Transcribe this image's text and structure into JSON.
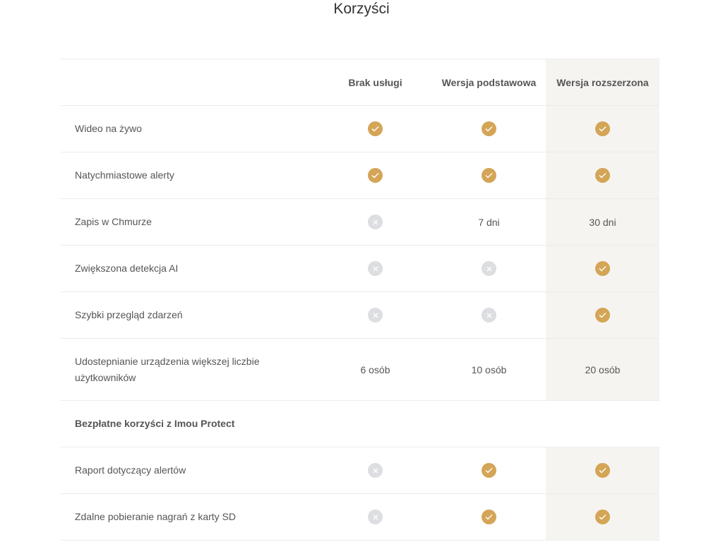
{
  "title": "Korzyści",
  "colors": {
    "check": "#d4a557",
    "cross": "#dddee1",
    "highlight": "#f5f4f0"
  },
  "columns": [
    "Brak usługi",
    "Wersja podstawowa",
    "Wersja rozszerzona"
  ],
  "rows": [
    {
      "label": "Wideo na żywo",
      "values": [
        "check",
        "check",
        "check"
      ]
    },
    {
      "label": "Natychmiastowe alerty",
      "values": [
        "check",
        "check",
        "check"
      ]
    },
    {
      "label": "Zapis w Chmurze",
      "values": [
        "cross",
        "7 dni",
        "30 dni"
      ]
    },
    {
      "label": "Zwiększona detekcja AI",
      "values": [
        "cross",
        "cross",
        "check"
      ]
    },
    {
      "label": "Szybki przegląd zdarzeń",
      "values": [
        "cross",
        "cross",
        "check"
      ]
    },
    {
      "label": "Udostepnianie urządzenia większej liczbie użytkowników",
      "values": [
        "6 osób",
        "10 osób",
        "20 osób"
      ],
      "tall": true
    },
    {
      "label": "Bezpłatne korzyści z Imou Protect",
      "section": true
    },
    {
      "label": "Raport dotyczący alertów",
      "values": [
        "cross",
        "check",
        "check"
      ]
    },
    {
      "label": "Zdalne pobieranie nagrań z karty SD",
      "values": [
        "cross",
        "check",
        "check"
      ]
    }
  ]
}
